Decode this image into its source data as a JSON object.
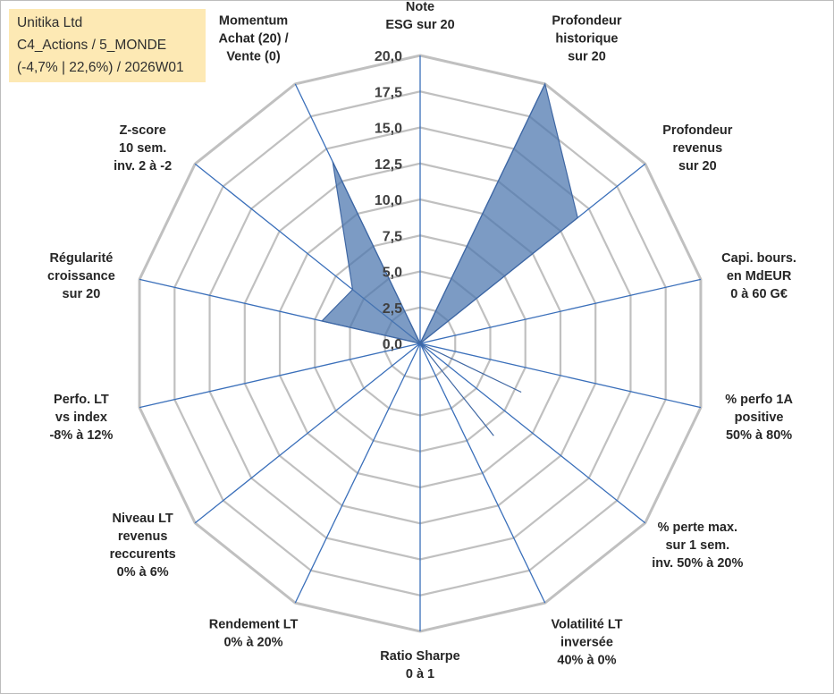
{
  "info": {
    "company": "Unitika Ltd",
    "portfolio": "C4_Actions / 5_MONDE",
    "stats": "(-4,7% | 22,6%) / 2026W01"
  },
  "colors": {
    "grid": "#c0c0c0",
    "axis": "#3a6fba",
    "fill": "#4a74ad",
    "stroke": "#3f67a3"
  },
  "chart_data": {
    "type": "radar",
    "scale": {
      "min": 0,
      "max": 20,
      "step": 2.5
    },
    "tick_labels": [
      "0,0",
      "2,5",
      "5,0",
      "7,5",
      "10,0",
      "12,5",
      "15,0",
      "17,5",
      "20,0"
    ],
    "axes": [
      {
        "label": [
          "Note",
          "ESG sur 20"
        ],
        "value": 0
      },
      {
        "label": [
          "Profondeur",
          "historique",
          "sur 20"
        ],
        "value": 20
      },
      {
        "label": [
          "Profondeur",
          "revenus",
          "sur 20"
        ],
        "value": 14
      },
      {
        "label": [
          "Capi. bours.",
          "en MdEUR",
          "0 à 60 G€"
        ],
        "value": 0
      },
      {
        "label": [
          "% perfo 1A",
          "positive",
          "50% à 80%"
        ],
        "value": 0
      },
      {
        "label": [
          "% perte max.",
          "sur 1 sem.",
          "inv. 50% à 20%"
        ],
        "value": 0
      },
      {
        "label": [
          "Volatilité LT",
          "inversée",
          "40% à 0%"
        ],
        "value": 0
      },
      {
        "label": [
          "Ratio Sharpe",
          "0 à 1"
        ],
        "value": 0
      },
      {
        "label": [
          "Rendement LT",
          "0% à 20%"
        ],
        "value": 0
      },
      {
        "label": [
          "Niveau LT",
          "revenus",
          "reccurents",
          "0% à 6%"
        ],
        "value": 0
      },
      {
        "label": [
          "Perfo. LT",
          "vs index",
          "-8% à 12%"
        ],
        "value": 0
      },
      {
        "label": [
          "Régularité",
          "croissance",
          "sur 20"
        ],
        "value": 7
      },
      {
        "label": [
          "Z-score",
          "10 sem.",
          "inv. 2 à -2"
        ],
        "value": 6
      },
      {
        "label": [
          "Momentum",
          "Achat (20) /",
          "Vente (0)"
        ],
        "value": 14
      }
    ],
    "extra_points": [
      {
        "between_axes": [
          3,
          4
        ],
        "value": 0
      },
      {
        "between_axes": [
          4,
          5
        ],
        "value": 7.8
      },
      {
        "between_axes": [
          5,
          6
        ],
        "value": 8.2
      },
      {
        "between_axes": [
          6,
          7
        ],
        "value": 0
      }
    ]
  }
}
